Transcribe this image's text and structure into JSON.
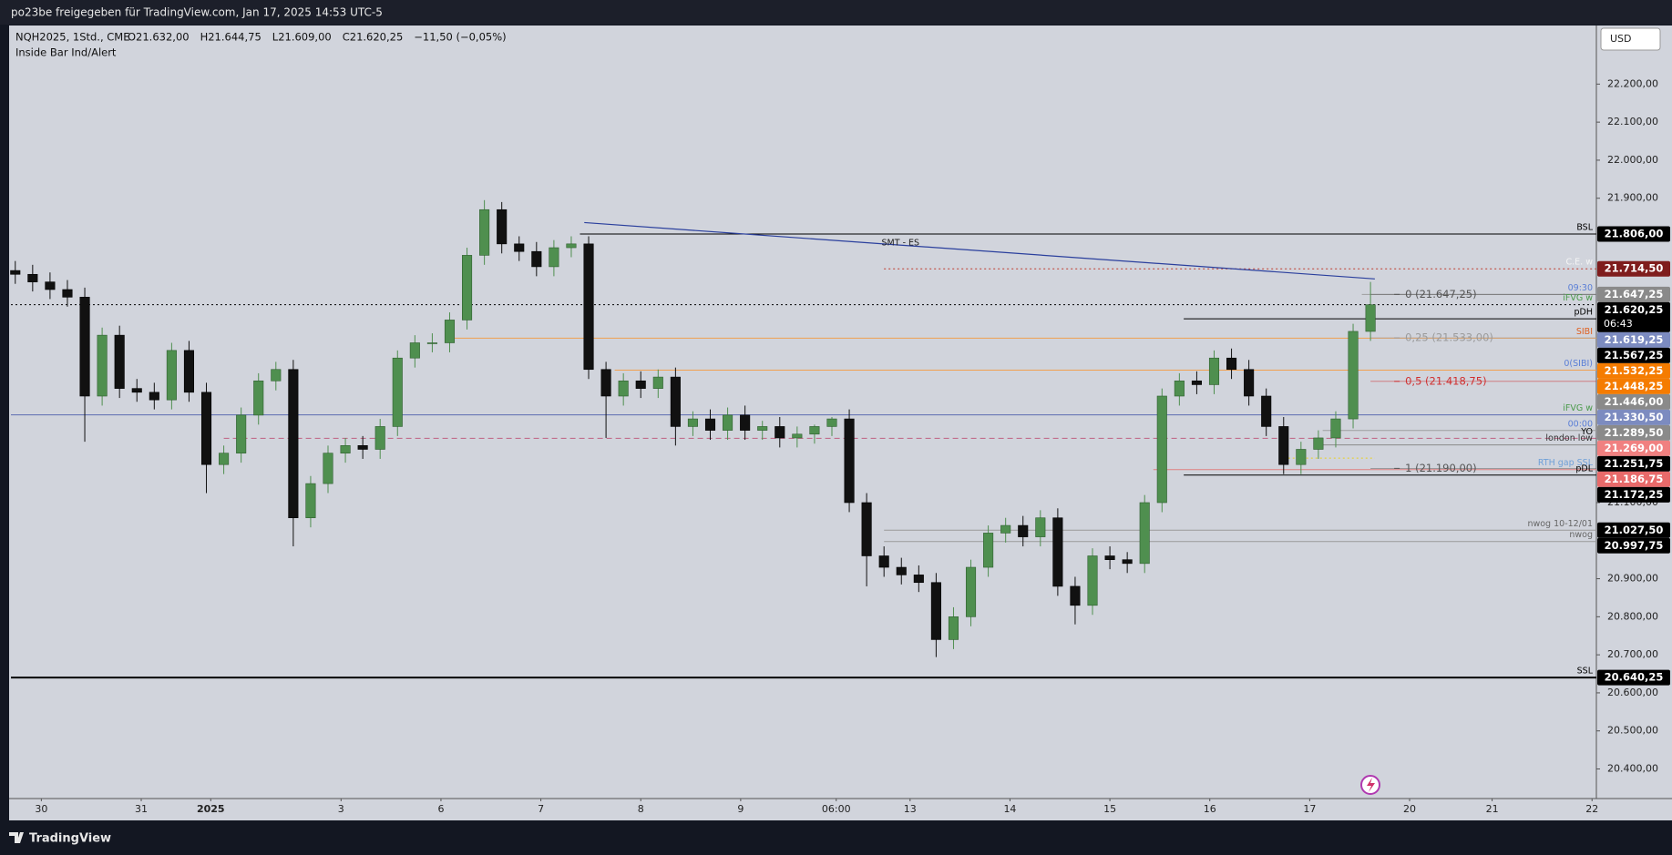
{
  "top_bar": "po23be freigegeben für TradingView.com, Jan 17, 2025 14:53 UTC-5",
  "footer": "TradingView",
  "currency": "USD",
  "chart_data": {
    "type": "candlestick",
    "legend": {
      "symbol": "NQH2025, 1Std., CME",
      "values": [
        "O21.632,00",
        "H21.644,75",
        "L21.609,00",
        "C21.620,25",
        "−11,50 (−0,05%)"
      ],
      "indicator": "Inside Bar Ind/Alert"
    },
    "up_color": "#4f8f4f",
    "down_color": "#111111",
    "xlim": [
      0,
      365
    ],
    "ylim": [
      20327,
      22354
    ],
    "xticks": [
      {
        "value": 7,
        "label": "30"
      },
      {
        "value": 30,
        "label": "31"
      },
      {
        "value": 46,
        "label": "2025",
        "emphasis": true
      },
      {
        "value": 76,
        "label": "3"
      },
      {
        "value": 99,
        "label": "6"
      },
      {
        "value": 122,
        "label": "7"
      },
      {
        "value": 145,
        "label": "8"
      },
      {
        "value": 168,
        "label": "9"
      },
      {
        "value": 190,
        "label": "06:00"
      },
      {
        "value": 207,
        "label": "13"
      },
      {
        "value": 230,
        "label": "14"
      },
      {
        "value": 253,
        "label": "15"
      },
      {
        "value": 276,
        "label": "16"
      },
      {
        "value": 299,
        "label": "17"
      },
      {
        "value": 322,
        "label": "20"
      },
      {
        "value": 341,
        "label": "21"
      },
      {
        "value": 364,
        "label": "22"
      }
    ],
    "yticks": [
      {
        "value": 22200,
        "label": "22.200,00"
      },
      {
        "value": 22100,
        "label": "22.100,00"
      },
      {
        "value": 22000,
        "label": "22.000,00"
      },
      {
        "value": 21900,
        "label": "21.900,00"
      },
      {
        "value": 21100,
        "label": "21.100,00"
      },
      {
        "value": 20900,
        "label": "20.900,00"
      },
      {
        "value": 20800,
        "label": "20.800,00"
      },
      {
        "value": 20700,
        "label": "20.700,00"
      },
      {
        "value": 20600,
        "label": "20.600,00"
      },
      {
        "value": 20500,
        "label": "20.500,00"
      },
      {
        "value": 20400,
        "label": "20.400,00"
      }
    ],
    "x": [
      1,
      5,
      9,
      13,
      17,
      21,
      25,
      29,
      33,
      37,
      41,
      45,
      49,
      53,
      57,
      61,
      65,
      69,
      73,
      77,
      81,
      85,
      89,
      93,
      97,
      101,
      105,
      109,
      113,
      117,
      121,
      125,
      129,
      133,
      137,
      141,
      145,
      149,
      153,
      157,
      161,
      165,
      169,
      173,
      177,
      181,
      185,
      189,
      193,
      197,
      201,
      205,
      209,
      213,
      217,
      221,
      225,
      229,
      233,
      237,
      241,
      245,
      249,
      253,
      257,
      261,
      265,
      269,
      273,
      277,
      281,
      285,
      289,
      293,
      297,
      301,
      305,
      309,
      313
    ],
    "open": [
      21710,
      21700,
      21680,
      21660,
      21640,
      21380,
      21540,
      21400,
      21390,
      21370,
      21500,
      21390,
      21200,
      21230,
      21330,
      21420,
      21450,
      21060,
      21150,
      21230,
      21250,
      21240,
      21300,
      21480,
      21520,
      21520,
      21580,
      21750,
      21870,
      21780,
      21760,
      21720,
      21770,
      21780,
      21450,
      21380,
      21420,
      21400,
      21430,
      21300,
      21320,
      21290,
      21330,
      21290,
      21300,
      21270,
      21280,
      21300,
      21320,
      21100,
      20960,
      20930,
      20910,
      20890,
      20740,
      20800,
      20930,
      21020,
      21040,
      21010,
      21060,
      20880,
      20830,
      20960,
      20950,
      20940,
      21100,
      21380,
      21420,
      21410,
      21480,
      21450,
      21380,
      21300,
      21200,
      21240,
      21270,
      21320,
      21550
    ],
    "high": [
      21735,
      21725,
      21705,
      21685,
      21665,
      21560,
      21565,
      21425,
      21415,
      21520,
      21525,
      21415,
      21250,
      21350,
      21440,
      21470,
      21475,
      21170,
      21250,
      21270,
      21275,
      21320,
      21500,
      21540,
      21545,
      21600,
      21770,
      21895,
      21890,
      21800,
      21785,
      21790,
      21800,
      21800,
      21470,
      21440,
      21445,
      21450,
      21455,
      21340,
      21345,
      21350,
      21355,
      21315,
      21325,
      21300,
      21305,
      21325,
      21345,
      21125,
      20985,
      20955,
      20935,
      20915,
      20825,
      20950,
      21040,
      21060,
      21065,
      21080,
      21085,
      20905,
      20980,
      20985,
      20970,
      21120,
      21400,
      21440,
      21445,
      21500,
      21505,
      21475,
      21400,
      21325,
      21260,
      21290,
      21340,
      21570,
      21680
    ],
    "low": [
      21675,
      21655,
      21635,
      21615,
      21260,
      21355,
      21375,
      21365,
      21345,
      21345,
      21365,
      21125,
      21175,
      21205,
      21305,
      21395,
      20985,
      21035,
      21125,
      21205,
      21215,
      21215,
      21275,
      21455,
      21495,
      21495,
      21555,
      21725,
      21755,
      21735,
      21695,
      21695,
      21745,
      21425,
      21270,
      21355,
      21375,
      21375,
      21250,
      21275,
      21265,
      21265,
      21265,
      21265,
      21245,
      21245,
      21255,
      21275,
      21075,
      20880,
      20905,
      20885,
      20865,
      20694,
      20715,
      20775,
      20905,
      20995,
      20985,
      20985,
      20855,
      20780,
      20805,
      20925,
      20915,
      20915,
      21075,
      21355,
      21385,
      21385,
      21425,
      21355,
      21275,
      21175,
      21175,
      21215,
      21245,
      21295,
      21525
    ],
    "close": [
      21700,
      21680,
      21660,
      21640,
      21380,
      21540,
      21400,
      21390,
      21370,
      21500,
      21390,
      21200,
      21230,
      21330,
      21420,
      21450,
      21060,
      21150,
      21230,
      21250,
      21240,
      21300,
      21480,
      21520,
      21520,
      21580,
      21750,
      21870,
      21780,
      21760,
      21720,
      21770,
      21780,
      21450,
      21380,
      21420,
      21400,
      21430,
      21300,
      21320,
      21290,
      21330,
      21290,
      21300,
      21270,
      21280,
      21300,
      21320,
      21100,
      20960,
      20930,
      20910,
      20890,
      20740,
      20800,
      20930,
      21020,
      21040,
      21010,
      21060,
      20880,
      20830,
      20960,
      20950,
      20940,
      21100,
      21380,
      21420,
      21410,
      21480,
      21450,
      21380,
      21300,
      21200,
      21240,
      21270,
      21320,
      21550,
      21620
    ],
    "levels": [
      {
        "value": 21806,
        "value_label": "21.806,00",
        "name": "BSL",
        "color": "#000000",
        "style": "solid",
        "x0": 131,
        "box_color": "#000000",
        "name_color": "#000000"
      },
      {
        "value": 21714.5,
        "value_label": "21.714,50",
        "name": "C.E. w",
        "color": "#c0392b",
        "style": "dotted",
        "x0": 201,
        "box_color": "#7f1d1d",
        "name_color": "#f5f5f5"
      },
      {
        "value": 21647.25,
        "value_label": "21.647,25",
        "name": "09:30",
        "color": "#9e9e9e",
        "style": "solid",
        "x0": 311,
        "box_color": "#8a8a8a",
        "name_color": "#5b7fd6"
      },
      {
        "value": 21620.25,
        "value_label": "21.620,25",
        "countdown": "06:43",
        "name": "iFVG w",
        "color": "#000000",
        "style": "dotted",
        "x0": 0,
        "box_color": "#000000",
        "name_color": "#4a9a4a"
      },
      {
        "value": 21619.25,
        "value_label": "21.619,25",
        "style": "none",
        "box_color": "#7c8bc0"
      },
      {
        "value": 21583,
        "name": "pDH",
        "color": "#000000",
        "style": "solid",
        "x0": 270,
        "name_color": "#000000"
      },
      {
        "value": 21567.25,
        "value_label": "21.567,25",
        "style": "none",
        "box_color": "#000000"
      },
      {
        "value": 21532.25,
        "value_label": "21.532,25",
        "name": "SIBI",
        "color": "#f0a050",
        "style": "solid",
        "x0": 101,
        "box_color": "#f57c00",
        "name_color": "#e06020"
      },
      {
        "value": 21448.25,
        "value_label": "21.448,25",
        "name": "0(SIBI)",
        "color": "#f0a050",
        "style": "solid",
        "x0": 139,
        "box_color": "#f57c00",
        "name_color": "#5b7fd6"
      },
      {
        "value": 21446,
        "value_label": "21.446,00",
        "style": "none",
        "box_color": "#8a8a8a"
      },
      {
        "value": 21330.5,
        "value_label": "21.330,50",
        "name": "iFVG w",
        "color": "#5b6bb0",
        "style": "solid",
        "x0": 0,
        "box_color": "#7c8bc0",
        "name_color": "#4a9a4a"
      },
      {
        "value": 21289.5,
        "value_label": "21.289,50",
        "name": "00:00",
        "color": "#9e9e9e",
        "style": "solid",
        "x0": 302,
        "box_color": "#8a8a8a",
        "name_color": "#5b7fd6"
      },
      {
        "value": 21269,
        "value_label": "21.269,00",
        "name": "YO",
        "color": "#c06080",
        "style": "dashed",
        "x0": 49,
        "box_color": "#f08080",
        "name_color": "#000000"
      },
      {
        "value": 21251.75,
        "value_label": "21.251,75",
        "name": "london low",
        "color": "#8a8a8a",
        "style": "solid",
        "x0": 302,
        "box_color": "#000000",
        "name_color": "#333333"
      },
      {
        "value": 21217,
        "color": "#e8d020",
        "style": "dotted",
        "x0": 293,
        "x1": 314
      },
      {
        "value": 21186.75,
        "value_label": "21.186,75",
        "name": "RTH gap SSL",
        "color": "#e08080",
        "style": "solid",
        "x0": 263,
        "box_color": "#e86a6a",
        "name_color": "#6fa0d8"
      },
      {
        "value": 21172.25,
        "value_label": "21.172,25",
        "name": "pDL",
        "color": "#000000",
        "style": "solid",
        "x0": 270,
        "box_color": "#000000",
        "name_color": "#000000"
      },
      {
        "value": 21027.5,
        "value_label": "21.027,50",
        "name": "nwog 10-12/01",
        "color": "#9a9a9a",
        "style": "solid",
        "x0": 201,
        "box_color": "#000000",
        "name_color": "#666666"
      },
      {
        "value": 20997.75,
        "value_label": "20.997,75",
        "name": "nwog",
        "color": "#9a9a9a",
        "style": "solid",
        "x0": 201,
        "box_color": "#000000",
        "name_color": "#666666"
      },
      {
        "value": 20640.25,
        "value_label": "20.640,25",
        "name": "SSL",
        "color": "#000000",
        "style": "solid",
        "width": 2,
        "x0": 0,
        "box_color": "#000000",
        "name_color": "#000000"
      }
    ],
    "fib": {
      "x0": 313,
      "levels": [
        {
          "value": 21647.25,
          "label": "0 (21.647,25)",
          "color": "#555555"
        },
        {
          "value": 21533,
          "label": "0,25 (21.533,00)",
          "color": "#9a9a9a"
        },
        {
          "value": 21418.75,
          "label": "0,5 (21.418,75)",
          "color": "#d03030"
        },
        {
          "value": 21190,
          "label": "1 (21.190,00)",
          "color": "#555555"
        }
      ]
    },
    "trendline": {
      "name": "SMT - ES",
      "x": [
        132,
        314
      ],
      "y": [
        21836,
        21688
      ],
      "color": "#2a3f9d"
    }
  }
}
